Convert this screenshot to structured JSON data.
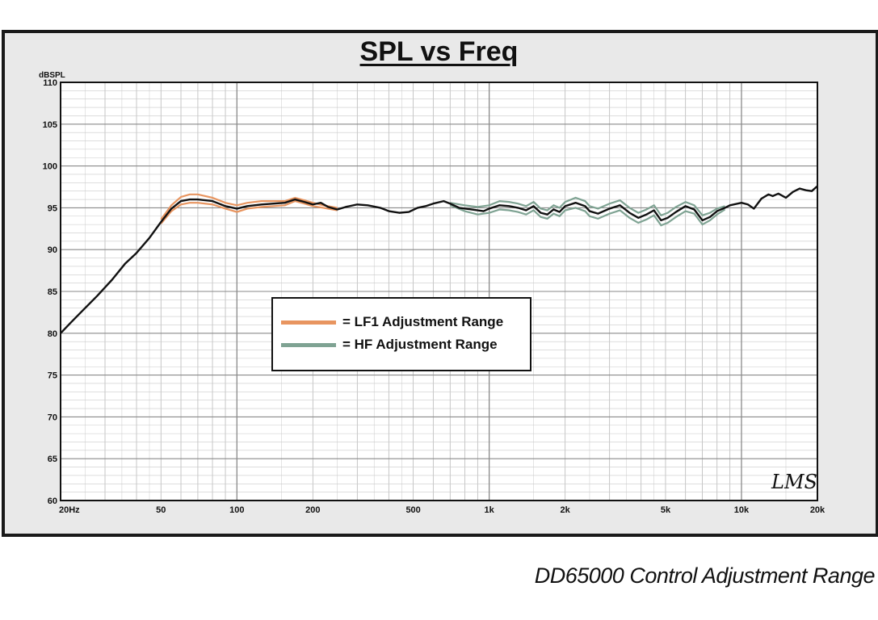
{
  "title": "SPL vs Freq",
  "caption": "DD65000 Control Adjustment Range",
  "watermark": "LMS",
  "colors": {
    "lf1": "#e89560",
    "hf": "#7fa393",
    "main": "#111111"
  },
  "chart_data": {
    "type": "line",
    "title": "SPL vs Freq",
    "ylabel": "dBSPL",
    "xscale": "log",
    "xlim": [
      20,
      20000
    ],
    "ylim": [
      60,
      110
    ],
    "grid": true,
    "legend_position": "center-left",
    "x_ticks": [
      {
        "value": 20,
        "label": "20Hz"
      },
      {
        "value": 50,
        "label": "50"
      },
      {
        "value": 100,
        "label": "100"
      },
      {
        "value": 200,
        "label": "200"
      },
      {
        "value": 500,
        "label": "500"
      },
      {
        "value": 1000,
        "label": "1k"
      },
      {
        "value": 2000,
        "label": "2k"
      },
      {
        "value": 5000,
        "label": "5k"
      },
      {
        "value": 10000,
        "label": "10k"
      },
      {
        "value": 20000,
        "label": "20k"
      }
    ],
    "y_ticks": [
      60,
      65,
      70,
      75,
      80,
      85,
      90,
      95,
      100,
      105,
      110
    ],
    "legend": [
      {
        "key": "lf1",
        "label": "= LF1 Adjustment Range"
      },
      {
        "key": "hf",
        "label": "= HF Adjustment Range"
      }
    ],
    "series": [
      {
        "key": "main",
        "points": [
          [
            20,
            80.0
          ],
          [
            22,
            81.3
          ],
          [
            25,
            83.0
          ],
          [
            28,
            84.5
          ],
          [
            32,
            86.4
          ],
          [
            36,
            88.3
          ],
          [
            40,
            89.6
          ],
          [
            45,
            91.4
          ],
          [
            50,
            93.3
          ],
          [
            55,
            94.9
          ],
          [
            60,
            95.8
          ],
          [
            65,
            96.0
          ],
          [
            70,
            96.0
          ],
          [
            80,
            95.8
          ],
          [
            90,
            95.2
          ],
          [
            100,
            94.9
          ],
          [
            110,
            95.2
          ],
          [
            125,
            95.4
          ],
          [
            140,
            95.5
          ],
          [
            155,
            95.6
          ],
          [
            170,
            96.0
          ],
          [
            185,
            95.7
          ],
          [
            200,
            95.4
          ],
          [
            215,
            95.6
          ],
          [
            230,
            95.1
          ],
          [
            250,
            94.8
          ],
          [
            270,
            95.1
          ],
          [
            300,
            95.4
          ],
          [
            330,
            95.3
          ],
          [
            370,
            95.0
          ],
          [
            400,
            94.6
          ],
          [
            440,
            94.4
          ],
          [
            480,
            94.5
          ],
          [
            520,
            95.0
          ],
          [
            560,
            95.2
          ],
          [
            600,
            95.5
          ],
          [
            660,
            95.8
          ],
          [
            700,
            95.5
          ],
          [
            760,
            95.0
          ],
          [
            850,
            94.8
          ],
          [
            950,
            94.6
          ],
          [
            1000,
            94.9
          ],
          [
            1100,
            95.3
          ],
          [
            1200,
            95.2
          ],
          [
            1300,
            95.0
          ],
          [
            1400,
            94.7
          ],
          [
            1500,
            95.2
          ],
          [
            1600,
            94.4
          ],
          [
            1700,
            94.2
          ],
          [
            1800,
            94.8
          ],
          [
            1900,
            94.5
          ],
          [
            2000,
            95.2
          ],
          [
            2200,
            95.6
          ],
          [
            2400,
            95.2
          ],
          [
            2500,
            94.6
          ],
          [
            2700,
            94.3
          ],
          [
            3000,
            94.9
          ],
          [
            3300,
            95.3
          ],
          [
            3600,
            94.4
          ],
          [
            3900,
            93.8
          ],
          [
            4200,
            94.2
          ],
          [
            4500,
            94.7
          ],
          [
            4800,
            93.5
          ],
          [
            5100,
            93.8
          ],
          [
            5500,
            94.5
          ],
          [
            6000,
            95.2
          ],
          [
            6500,
            94.8
          ],
          [
            7000,
            93.5
          ],
          [
            7500,
            93.9
          ],
          [
            8000,
            94.6
          ],
          [
            8600,
            95.0
          ],
          [
            9000,
            95.3
          ],
          [
            10000,
            95.6
          ],
          [
            10600,
            95.4
          ],
          [
            11200,
            94.9
          ],
          [
            12000,
            96.1
          ],
          [
            12800,
            96.6
          ],
          [
            13300,
            96.4
          ],
          [
            14000,
            96.7
          ],
          [
            15000,
            96.2
          ],
          [
            16000,
            96.9
          ],
          [
            17000,
            97.3
          ],
          [
            18000,
            97.1
          ],
          [
            19000,
            97.0
          ],
          [
            20000,
            97.6
          ]
        ]
      },
      {
        "key": "lf1",
        "name": "LF1 Adjustment Range",
        "upper": [
          [
            50,
            93.6
          ],
          [
            55,
            95.3
          ],
          [
            60,
            96.3
          ],
          [
            65,
            96.6
          ],
          [
            70,
            96.6
          ],
          [
            80,
            96.2
          ],
          [
            90,
            95.6
          ],
          [
            100,
            95.3
          ],
          [
            110,
            95.6
          ],
          [
            125,
            95.8
          ],
          [
            140,
            95.8
          ],
          [
            155,
            95.8
          ],
          [
            170,
            96.2
          ],
          [
            185,
            95.9
          ],
          [
            200,
            95.6
          ],
          [
            220,
            95.3
          ],
          [
            250,
            95.0
          ]
        ],
        "lower": [
          [
            50,
            93.1
          ],
          [
            55,
            94.6
          ],
          [
            60,
            95.4
          ],
          [
            65,
            95.6
          ],
          [
            70,
            95.6
          ],
          [
            80,
            95.4
          ],
          [
            90,
            94.9
          ],
          [
            100,
            94.5
          ],
          [
            110,
            94.9
          ],
          [
            125,
            95.1
          ],
          [
            140,
            95.2
          ],
          [
            155,
            95.3
          ],
          [
            170,
            95.8
          ],
          [
            185,
            95.5
          ],
          [
            200,
            95.2
          ],
          [
            220,
            95.0
          ],
          [
            250,
            94.7
          ]
        ]
      },
      {
        "key": "hf",
        "name": "HF Adjustment Range",
        "upper": [
          [
            700,
            95.6
          ],
          [
            800,
            95.3
          ],
          [
            900,
            95.1
          ],
          [
            1000,
            95.3
          ],
          [
            1100,
            95.8
          ],
          [
            1200,
            95.7
          ],
          [
            1300,
            95.5
          ],
          [
            1400,
            95.2
          ],
          [
            1500,
            95.7
          ],
          [
            1600,
            94.9
          ],
          [
            1700,
            94.7
          ],
          [
            1800,
            95.3
          ],
          [
            1900,
            95.0
          ],
          [
            2000,
            95.7
          ],
          [
            2200,
            96.2
          ],
          [
            2400,
            95.8
          ],
          [
            2500,
            95.2
          ],
          [
            2700,
            94.9
          ],
          [
            3000,
            95.5
          ],
          [
            3300,
            95.9
          ],
          [
            3600,
            95.0
          ],
          [
            3900,
            94.4
          ],
          [
            4200,
            94.8
          ],
          [
            4500,
            95.3
          ],
          [
            4800,
            94.1
          ],
          [
            5100,
            94.4
          ],
          [
            5500,
            95.1
          ],
          [
            6000,
            95.7
          ],
          [
            6500,
            95.3
          ],
          [
            7000,
            94.1
          ],
          [
            7500,
            94.4
          ],
          [
            8000,
            94.9
          ],
          [
            8600,
            95.2
          ]
        ],
        "lower": [
          [
            700,
            95.3
          ],
          [
            800,
            94.6
          ],
          [
            900,
            94.2
          ],
          [
            1000,
            94.4
          ],
          [
            1100,
            94.8
          ],
          [
            1200,
            94.7
          ],
          [
            1300,
            94.5
          ],
          [
            1400,
            94.2
          ],
          [
            1500,
            94.7
          ],
          [
            1600,
            93.9
          ],
          [
            1700,
            93.7
          ],
          [
            1800,
            94.3
          ],
          [
            1900,
            94.0
          ],
          [
            2000,
            94.7
          ],
          [
            2200,
            95.0
          ],
          [
            2400,
            94.6
          ],
          [
            2500,
            94.0
          ],
          [
            2700,
            93.7
          ],
          [
            3000,
            94.3
          ],
          [
            3300,
            94.7
          ],
          [
            3600,
            93.8
          ],
          [
            3900,
            93.2
          ],
          [
            4200,
            93.6
          ],
          [
            4500,
            94.1
          ],
          [
            4800,
            92.9
          ],
          [
            5100,
            93.2
          ],
          [
            5500,
            93.9
          ],
          [
            6000,
            94.6
          ],
          [
            6500,
            94.3
          ],
          [
            7000,
            93.0
          ],
          [
            7500,
            93.5
          ],
          [
            8000,
            94.2
          ],
          [
            8600,
            94.8
          ]
        ]
      }
    ]
  }
}
